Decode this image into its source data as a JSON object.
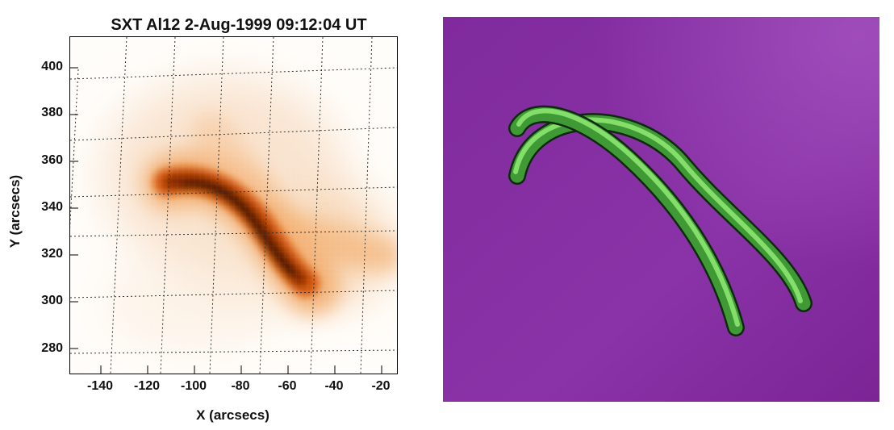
{
  "left_panel": {
    "title": "SXT Al12  2-Aug-1999 09:12:04 UT",
    "xlabel": "X (arcsecs)",
    "ylabel": "Y (arcsecs)",
    "x_ticks": [
      "-140",
      "-120",
      "-100",
      "-80",
      "-60",
      "-40",
      "-20"
    ],
    "y_ticks": [
      "400",
      "380",
      "360",
      "340",
      "320",
      "300",
      "280"
    ],
    "colormap": "orange-on-white soft X-ray intensity"
  },
  "right_panel": {
    "description_colors": {
      "background": "#8a2fa8",
      "loop_color": "#6fd35c"
    }
  },
  "chart_data": {
    "type": "heatmap",
    "title": "SXT Al12  2-Aug-1999 09:12:04 UT",
    "xlabel": "X (arcsecs)",
    "ylabel": "Y (arcsecs)",
    "xlim": [
      -152,
      -11
    ],
    "ylim": [
      271,
      412
    ],
    "grid": true
  }
}
